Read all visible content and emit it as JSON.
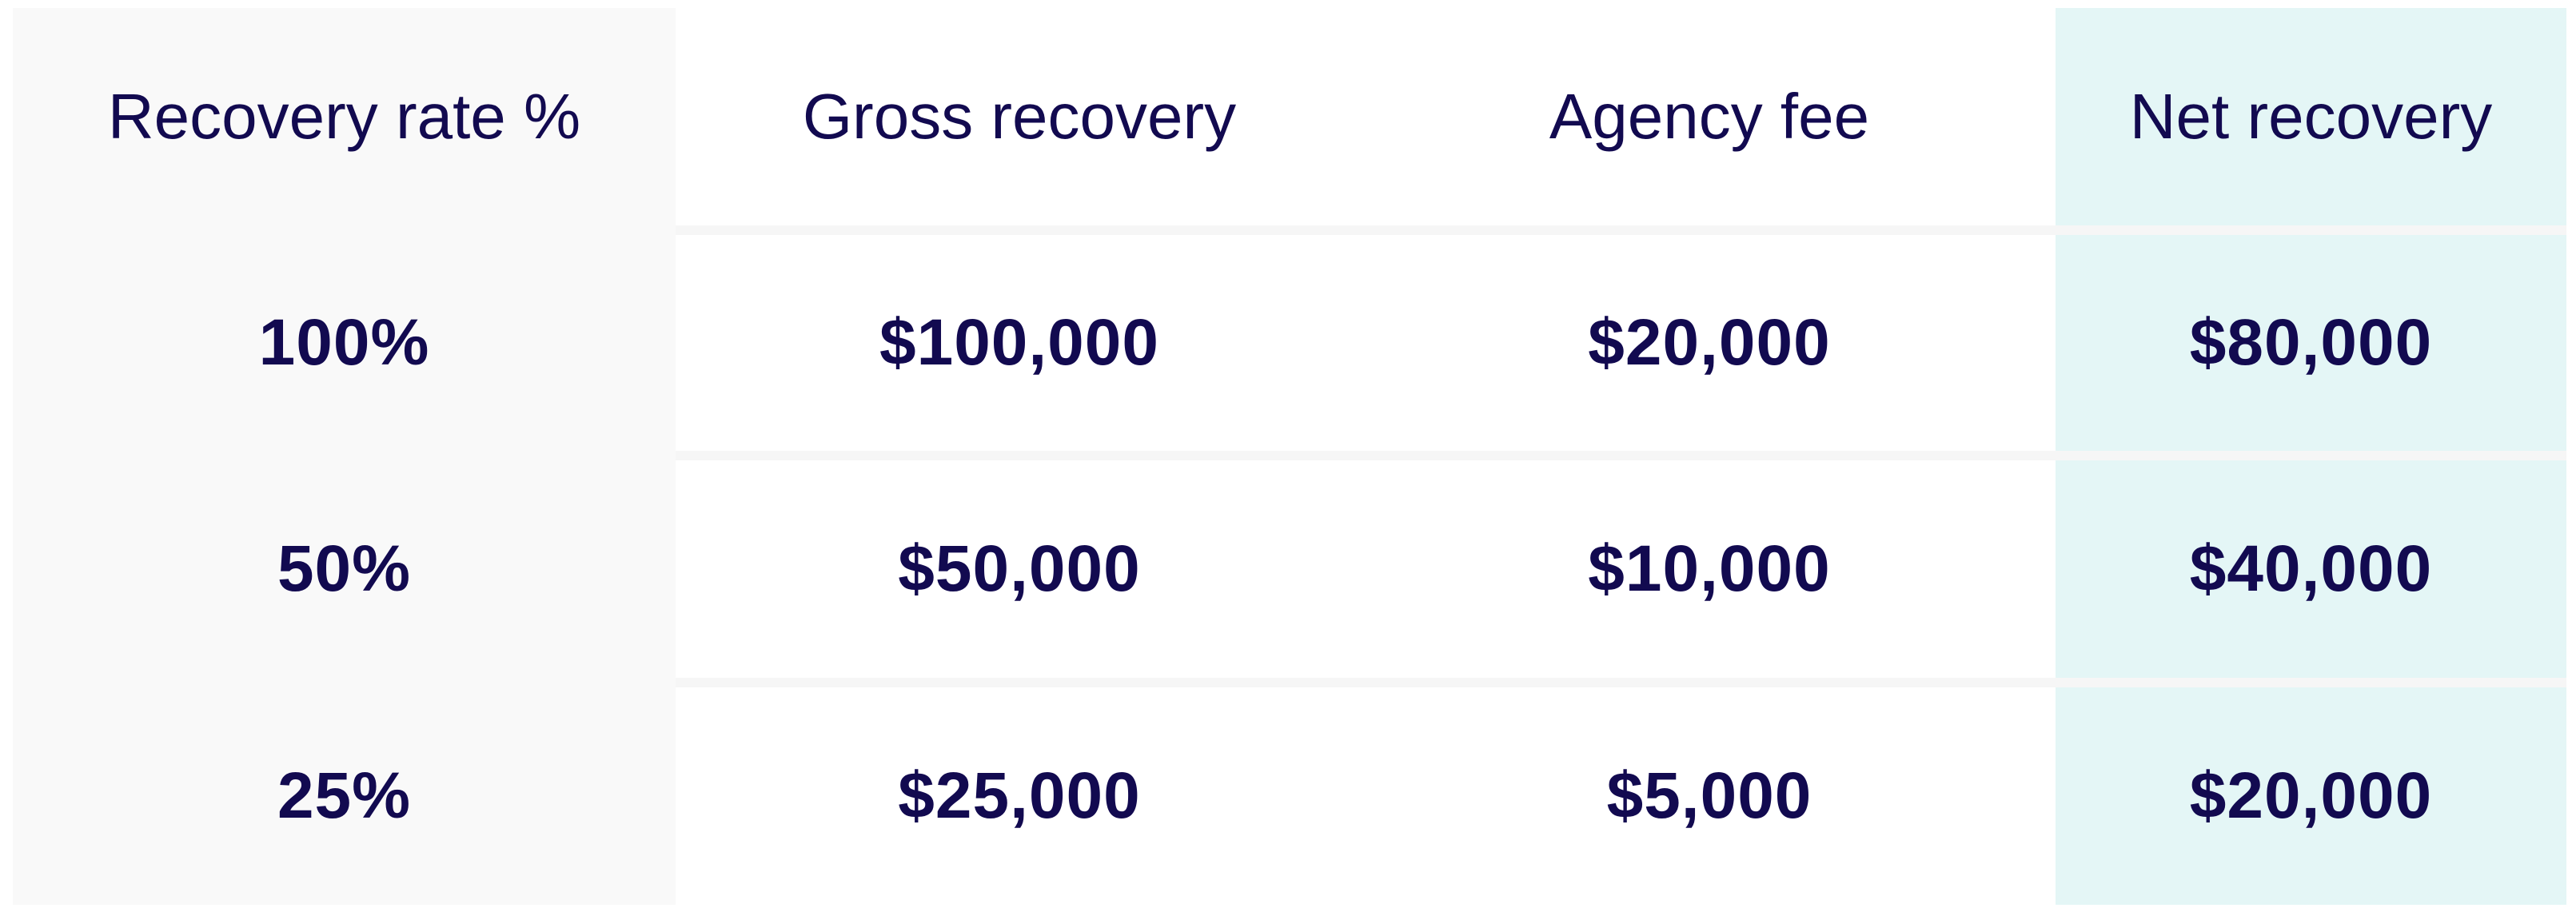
{
  "table": {
    "headers": [
      "Recovery rate %",
      "Gross recovery",
      "Agency fee",
      "Net recovery"
    ],
    "rows": [
      [
        "100%",
        "$100,000",
        "$20,000",
        "$80,000"
      ],
      [
        "50%",
        "$50,000",
        "$10,000",
        "$40,000"
      ],
      [
        "25%",
        "$25,000",
        "$5,000",
        "$20,000"
      ]
    ]
  },
  "colors": {
    "text": "#120a50",
    "first_column_bg": "#f9f9f9",
    "highlight_column_bg": "#e4f6f6",
    "row_separator": "#f6f6f6"
  }
}
